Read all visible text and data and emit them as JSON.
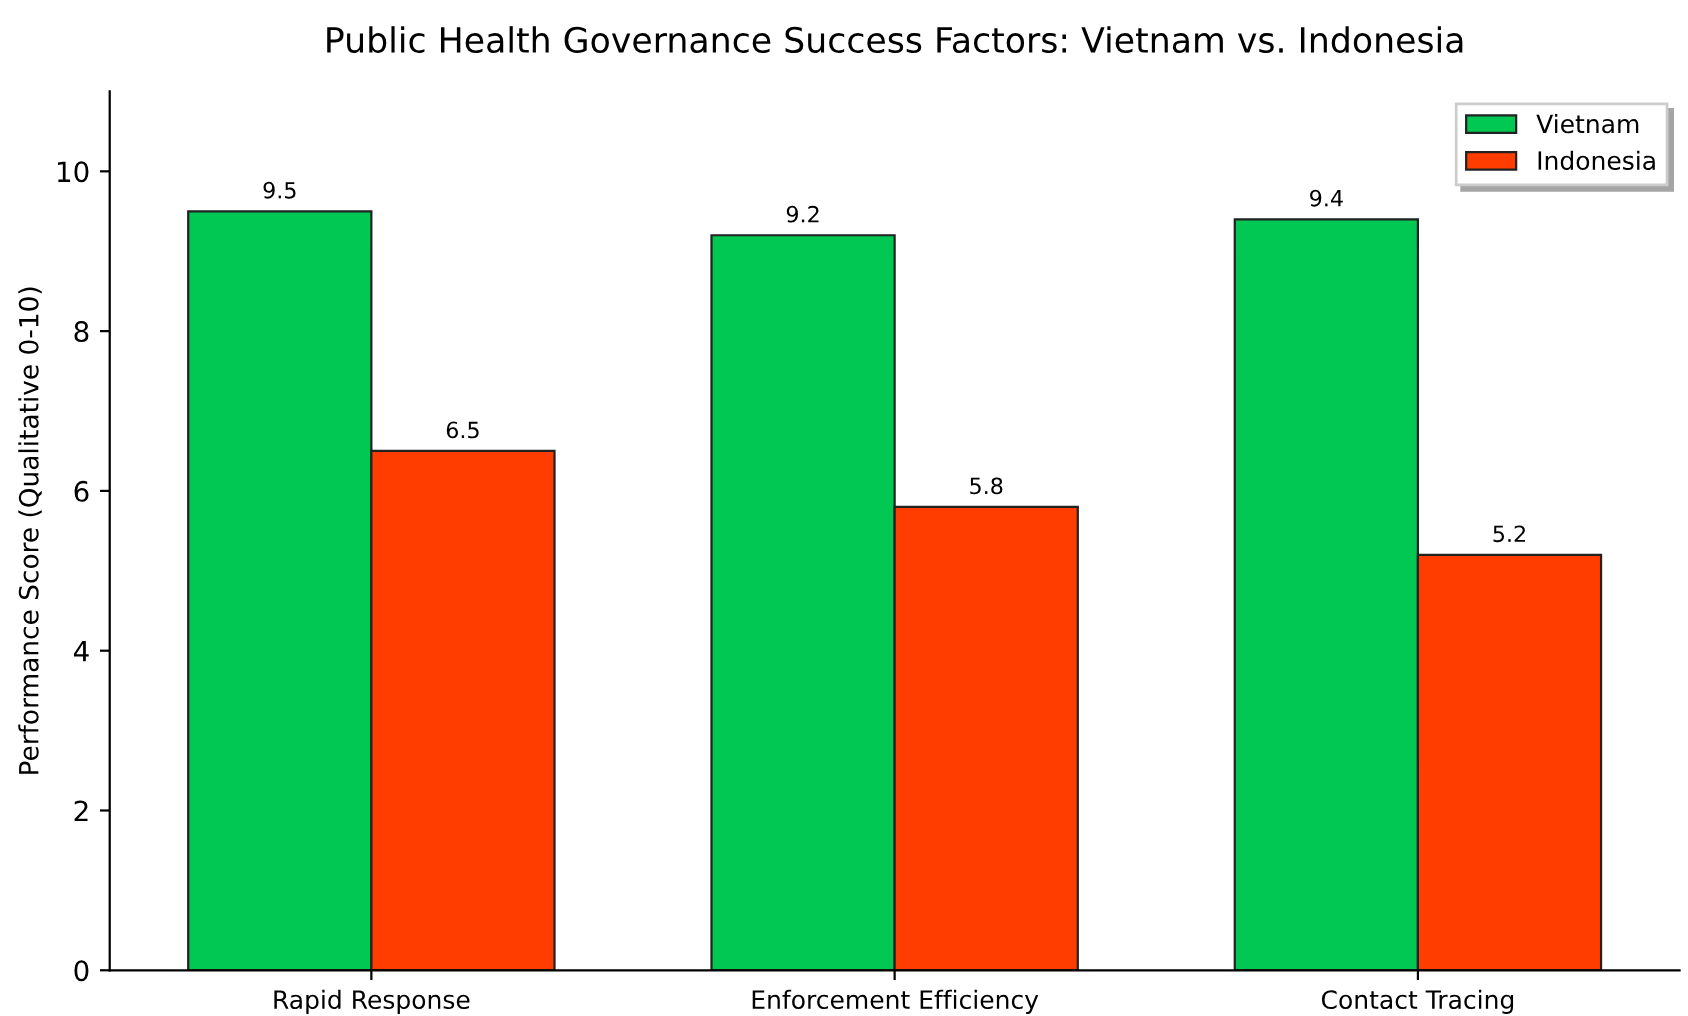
{
  "chart_data": {
    "type": "bar",
    "title": "Public Health Governance Success Factors: Vietnam vs. Indonesia",
    "ylabel": "Performance Score (Qualitative 0-10)",
    "categories": [
      "Rapid Response",
      "Enforcement Efficiency",
      "Contact Tracing"
    ],
    "series": [
      {
        "name": "Vietnam",
        "color": "#00c853",
        "values": [
          9.5,
          9.2,
          9.4
        ]
      },
      {
        "name": "Indonesia",
        "color": "#ff3d00",
        "values": [
          6.5,
          5.8,
          5.2
        ]
      }
    ],
    "ylim": [
      0,
      11
    ],
    "yticks": [
      0,
      2,
      4,
      6,
      8,
      10
    ],
    "grid": false,
    "legend": "top right",
    "data_labels": true
  }
}
